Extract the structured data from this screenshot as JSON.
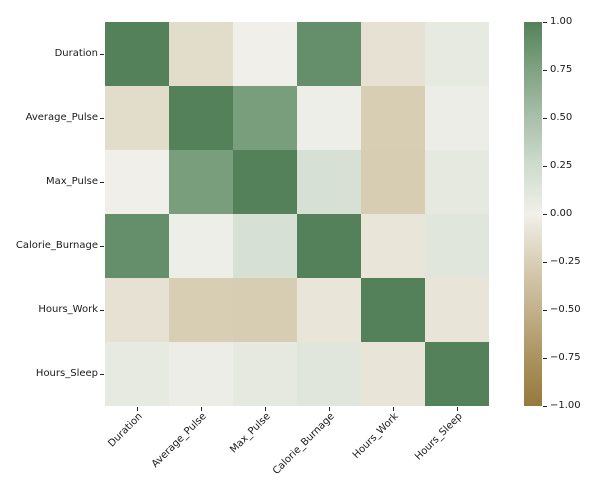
{
  "chart_data": {
    "type": "heatmap",
    "title": "",
    "xlabel": "",
    "ylabel": "",
    "categories": [
      "Duration",
      "Average_Pulse",
      "Max_Pulse",
      "Calorie_Burnage",
      "Hours_Work",
      "Hours_Sleep"
    ],
    "matrix": [
      [
        1.0,
        -0.15,
        0.01,
        0.9,
        -0.11,
        0.08
      ],
      [
        -0.15,
        1.0,
        0.79,
        0.03,
        -0.26,
        0.04
      ],
      [
        0.01,
        0.79,
        1.0,
        0.2,
        -0.27,
        0.09
      ],
      [
        0.9,
        0.03,
        0.2,
        1.0,
        -0.08,
        0.12
      ],
      [
        -0.11,
        -0.26,
        -0.27,
        -0.08,
        1.0,
        -0.09
      ],
      [
        0.08,
        0.04,
        0.09,
        0.12,
        -0.09,
        1.0
      ]
    ],
    "vmin": -1,
    "vmax": 1,
    "grid_on": false,
    "legend_position": "right",
    "x_tick_rotation": 45,
    "colorbar_ticks": [
      {
        "value": 1.0,
        "label": "1.00"
      },
      {
        "value": 0.75,
        "label": "0.75"
      },
      {
        "value": 0.5,
        "label": "0.50"
      },
      {
        "value": 0.25,
        "label": "0.25"
      },
      {
        "value": 0.0,
        "label": "0.00"
      },
      {
        "value": -0.25,
        "label": "−0.25"
      },
      {
        "value": -0.5,
        "label": "−0.50"
      },
      {
        "value": -0.75,
        "label": "−0.75"
      },
      {
        "value": -1.0,
        "label": "−1.00"
      }
    ],
    "colormap_anchors": [
      {
        "v": -1.0,
        "color": "#96793d"
      },
      {
        "v": -0.75,
        "color": "#ab935f"
      },
      {
        "v": -0.5,
        "color": "#c2b18c"
      },
      {
        "v": -0.25,
        "color": "#d8cfb6"
      },
      {
        "v": 0.0,
        "color": "#f1f0ea"
      },
      {
        "v": 0.25,
        "color": "#cfdcce"
      },
      {
        "v": 0.5,
        "color": "#a9c0aa"
      },
      {
        "v": 0.75,
        "color": "#7fa382"
      },
      {
        "v": 1.0,
        "color": "#54815a"
      }
    ],
    "tick_color": "#262626",
    "text_color": "#1a1a1a"
  }
}
